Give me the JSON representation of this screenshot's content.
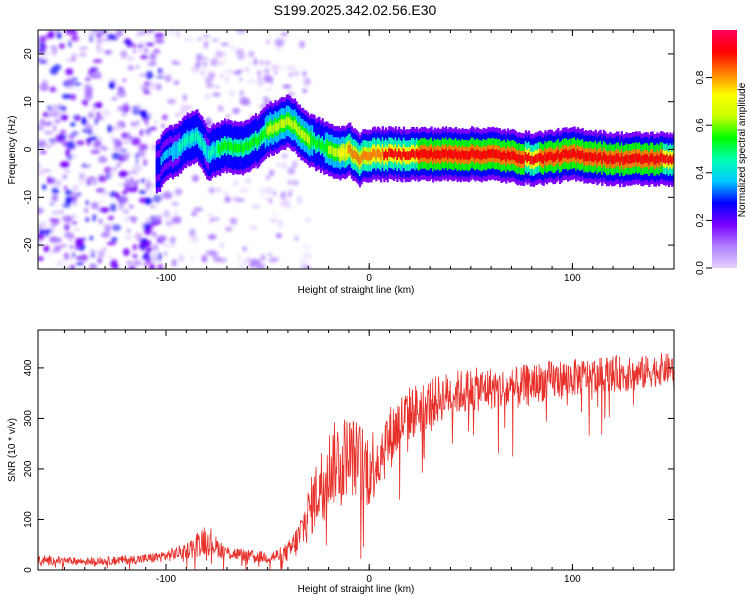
{
  "chart_data": [
    {
      "type": "heatmap",
      "title": "S199.2025.342.02.56.E30",
      "xlabel": "Height of straight line (km)",
      "ylabel": "Frequency (Hz)",
      "xlim": [
        -163,
        150
      ],
      "ylim": [
        -25,
        25
      ],
      "x_ticks": [
        -100,
        0,
        100
      ],
      "x_tick_labels": [
        "-100",
        "0",
        "100"
      ],
      "y_ticks": [
        -20,
        -10,
        0,
        10,
        20
      ],
      "y_tick_labels": [
        "-20",
        "-10",
        "0",
        "10",
        "20"
      ],
      "colorbar": {
        "label": "Normalized spectral amplitude",
        "range": [
          0,
          1
        ],
        "ticks": [
          0.0,
          0.2,
          0.4,
          0.6,
          0.8
        ],
        "tick_labels": [
          "0.0",
          "0.2",
          "0.4",
          "0.6",
          "0.8"
        ],
        "colormap": [
          "#e6d2ff",
          "#b080ff",
          "#7a00ff",
          "#0000ff",
          "#00c8ff",
          "#00ffb0",
          "#00ff00",
          "#c8ff00",
          "#ffff00",
          "#ff8000",
          "#ff0000",
          "#ff0060"
        ]
      },
      "ridge": {
        "x": [
          -105,
          -100,
          -95,
          -90,
          -85,
          -80,
          -75,
          -70,
          -65,
          -60,
          -55,
          -50,
          -45,
          -40,
          -35,
          -30,
          -25,
          -20,
          -15,
          -10,
          -5,
          0,
          5,
          10,
          20,
          40,
          60,
          80,
          100,
          120,
          150
        ],
        "y": [
          -4,
          -1,
          0,
          2,
          3,
          -1,
          0,
          1,
          0,
          1,
          2,
          4,
          5,
          6,
          4,
          2,
          1,
          0,
          -1,
          0,
          -2,
          -1,
          -1,
          -1,
          -1,
          -1,
          -1,
          -2,
          -1,
          -2,
          -2
        ],
        "amplitude": [
          0.3,
          0.35,
          0.4,
          0.45,
          0.45,
          0.4,
          0.5,
          0.5,
          0.5,
          0.55,
          0.55,
          0.6,
          0.6,
          0.6,
          0.6,
          0.6,
          0.55,
          0.6,
          0.7,
          0.8,
          0.8,
          0.8,
          0.85,
          0.9,
          0.9,
          0.95,
          0.95,
          0.9,
          0.95,
          0.95,
          0.9
        ]
      },
      "noise_region_x": [
        -163,
        -100
      ]
    },
    {
      "type": "line",
      "xlabel": "Height of straight line (km)",
      "ylabel": "SNR (10 * v/v)",
      "xlim": [
        -163,
        150
      ],
      "ylim": [
        0,
        475
      ],
      "x_ticks": [
        -100,
        0,
        100
      ],
      "x_tick_labels": [
        "-100",
        "0",
        "100"
      ],
      "y_ticks": [
        0,
        100,
        200,
        300,
        400
      ],
      "y_tick_labels": [
        "0",
        "100",
        "200",
        "300",
        "400"
      ],
      "series": [
        {
          "name": "SNR",
          "color": "#e8302a",
          "x": [
            -163,
            -150,
            -140,
            -130,
            -120,
            -110,
            -100,
            -90,
            -85,
            -80,
            -75,
            -70,
            -60,
            -50,
            -45,
            -40,
            -35,
            -30,
            -25,
            -20,
            -15,
            -10,
            -5,
            0,
            5,
            10,
            15,
            20,
            30,
            40,
            50,
            60,
            70,
            80,
            90,
            100,
            110,
            120,
            130,
            140,
            150
          ],
          "values": [
            20,
            18,
            17,
            18,
            20,
            22,
            28,
            38,
            50,
            65,
            45,
            35,
            28,
            25,
            28,
            35,
            60,
            110,
            160,
            200,
            220,
            230,
            215,
            200,
            230,
            260,
            290,
            310,
            330,
            350,
            355,
            360,
            355,
            370,
            375,
            380,
            385,
            390,
            385,
            395,
            400
          ],
          "amplitude": [
            10,
            8,
            8,
            8,
            9,
            10,
            12,
            15,
            25,
            35,
            20,
            15,
            12,
            12,
            15,
            20,
            35,
            55,
            70,
            80,
            85,
            80,
            80,
            80,
            70,
            65,
            60,
            55,
            50,
            45,
            45,
            42,
            45,
            40,
            40,
            38,
            35,
            35,
            35,
            33,
            30
          ]
        }
      ]
    }
  ]
}
